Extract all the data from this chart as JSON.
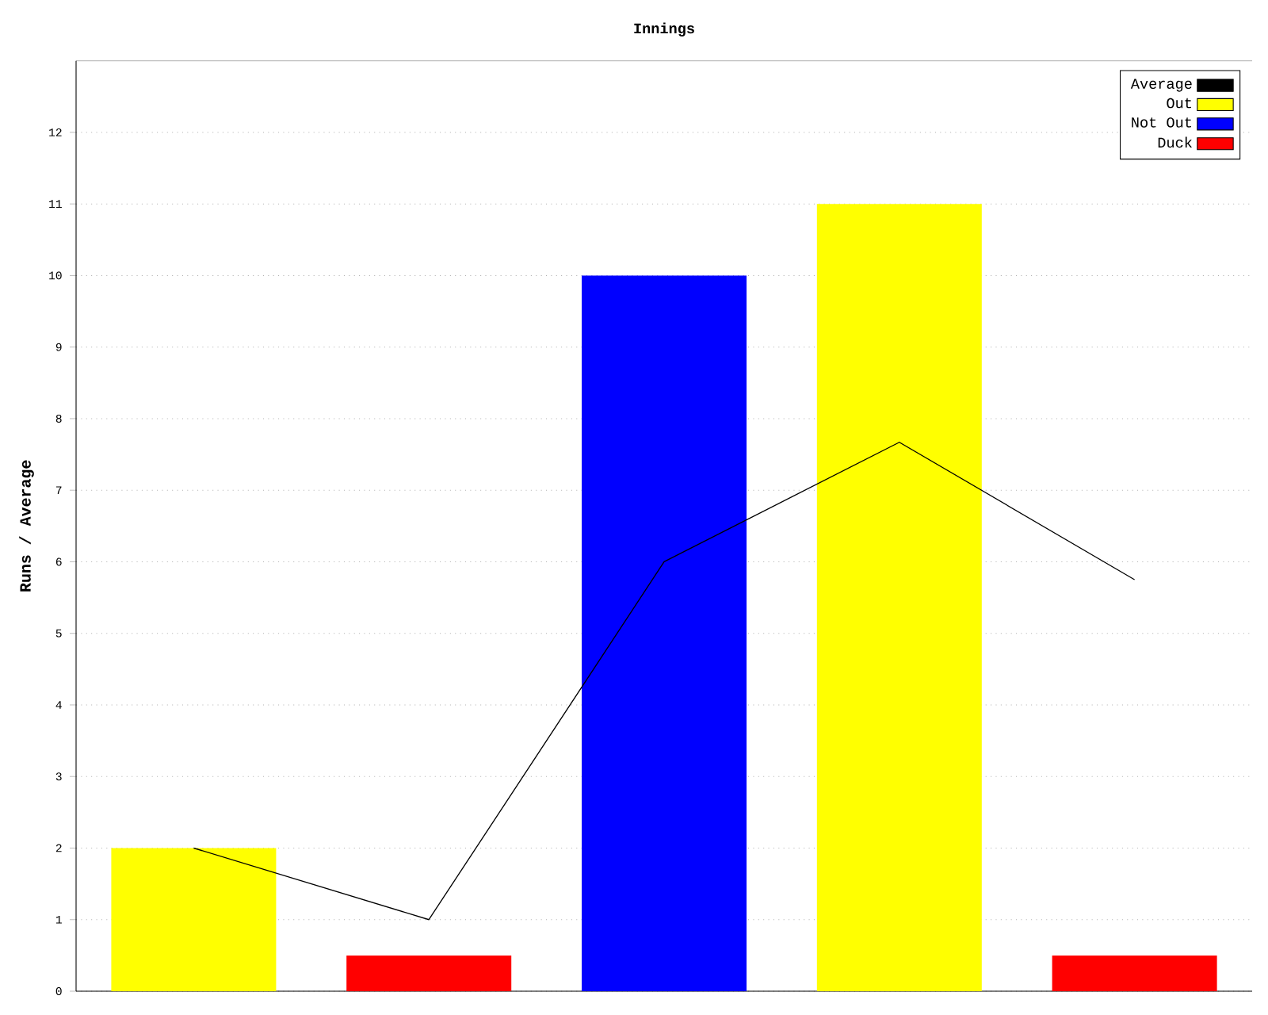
{
  "chart_data": {
    "type": "bar",
    "title": "Innings",
    "ylabel": "Runs / Average",
    "categories": [
      null,
      null,
      null,
      null,
      null
    ],
    "series": [
      {
        "name": "Average",
        "type": "line",
        "color": "#000000",
        "values": [
          2,
          1,
          6,
          7.67,
          5.75
        ]
      },
      {
        "name": "Out",
        "color": "#ffff00",
        "values": [
          2,
          null,
          null,
          11,
          null
        ]
      },
      {
        "name": "Not Out",
        "color": "#0000ff",
        "values": [
          null,
          null,
          10,
          null,
          null
        ]
      },
      {
        "name": "Duck",
        "color": "#ff0000",
        "values": [
          null,
          0.5,
          null,
          null,
          0.5
        ]
      }
    ],
    "ylim": [
      0,
      13
    ],
    "yticks": [
      0,
      1,
      2,
      3,
      4,
      5,
      6,
      7,
      8,
      9,
      10,
      11,
      12
    ],
    "grid": "y",
    "legend": "top right",
    "tick_labels": "y"
  }
}
